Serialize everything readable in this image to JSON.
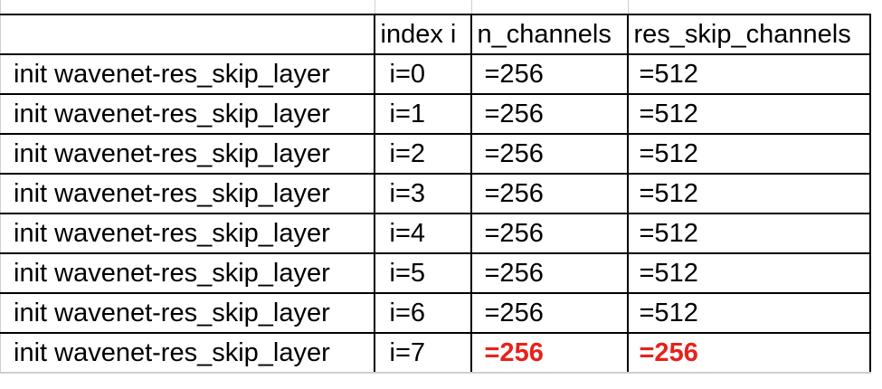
{
  "table": {
    "headers": [
      "",
      "index i",
      "n_channels",
      "res_skip_channels"
    ],
    "rows": [
      [
        "init wavenet-res_skip_layer",
        "i=0",
        "=256",
        "=512"
      ],
      [
        "init wavenet-res_skip_layer",
        "i=1",
        "=256",
        "=512"
      ],
      [
        "init wavenet-res_skip_layer",
        "i=2",
        "=256",
        "=512"
      ],
      [
        "init wavenet-res_skip_layer",
        "i=3",
        "=256",
        "=512"
      ],
      [
        "init wavenet-res_skip_layer",
        "i=4",
        "=256",
        "=512"
      ],
      [
        "init wavenet-res_skip_layer",
        "i=5",
        "=256",
        "=512"
      ],
      [
        "init wavenet-res_skip_layer",
        "i=6",
        "=256",
        "=512"
      ],
      [
        "init wavenet-res_skip_layer",
        "i=7",
        "=256",
        "=256"
      ]
    ],
    "highlight_color": "#e8211c",
    "highlighted_cells": [
      [
        7,
        2
      ],
      [
        7,
        3
      ]
    ]
  }
}
